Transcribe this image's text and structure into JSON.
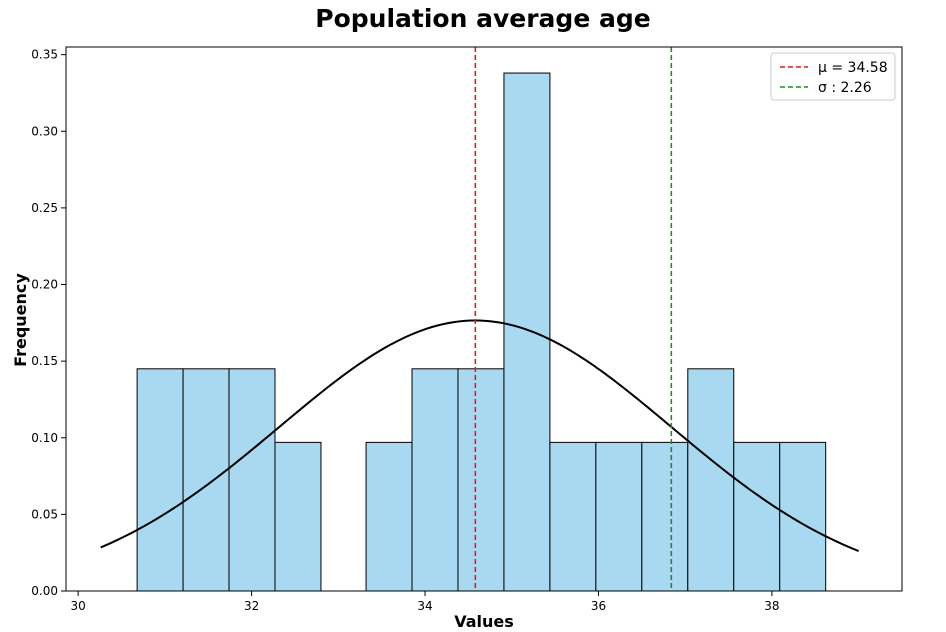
{
  "chart_data": {
    "type": "bar",
    "title": "Population average age",
    "xlabel": "Values",
    "ylabel": "Frequency",
    "xlim": [
      29.86,
      39.5
    ],
    "ylim": [
      0,
      0.355
    ],
    "xticks": [
      30,
      32,
      34,
      36,
      38
    ],
    "yticks": [
      0.0,
      0.05,
      0.1,
      0.15,
      0.2,
      0.25,
      0.3,
      0.35
    ],
    "bar_color": "#a8d9f0",
    "bins": [
      {
        "x0": 30.68,
        "x1": 31.21,
        "value": 0.145
      },
      {
        "x0": 31.21,
        "x1": 31.74,
        "value": 0.145
      },
      {
        "x0": 31.74,
        "x1": 32.27,
        "value": 0.145
      },
      {
        "x0": 32.27,
        "x1": 32.8,
        "value": 0.097
      },
      {
        "x0": 32.8,
        "x1": 33.32,
        "value": 0.0
      },
      {
        "x0": 33.32,
        "x1": 33.85,
        "value": 0.097
      },
      {
        "x0": 33.85,
        "x1": 34.38,
        "value": 0.145
      },
      {
        "x0": 34.38,
        "x1": 34.91,
        "value": 0.145
      },
      {
        "x0": 34.91,
        "x1": 35.44,
        "value": 0.338
      },
      {
        "x0": 35.44,
        "x1": 35.97,
        "value": 0.097
      },
      {
        "x0": 35.97,
        "x1": 36.5,
        "value": 0.097
      },
      {
        "x0": 36.5,
        "x1": 37.03,
        "value": 0.097
      },
      {
        "x0": 37.03,
        "x1": 37.56,
        "value": 0.145
      },
      {
        "x0": 37.56,
        "x1": 38.09,
        "value": 0.097
      },
      {
        "x0": 38.09,
        "x1": 38.62,
        "value": 0.097
      }
    ],
    "normal_curve": {
      "mu": 34.58,
      "sigma": 2.26,
      "x_range": [
        30.26,
        39.0
      ],
      "color": "#000000"
    },
    "vlines": [
      {
        "x": 34.58,
        "color": "#e41a1c",
        "label": "μ = 34.58"
      },
      {
        "x": 36.84,
        "color": "#228b22",
        "label": "σ : 2.26"
      }
    ],
    "legend_position": "top-right",
    "grid": false
  }
}
